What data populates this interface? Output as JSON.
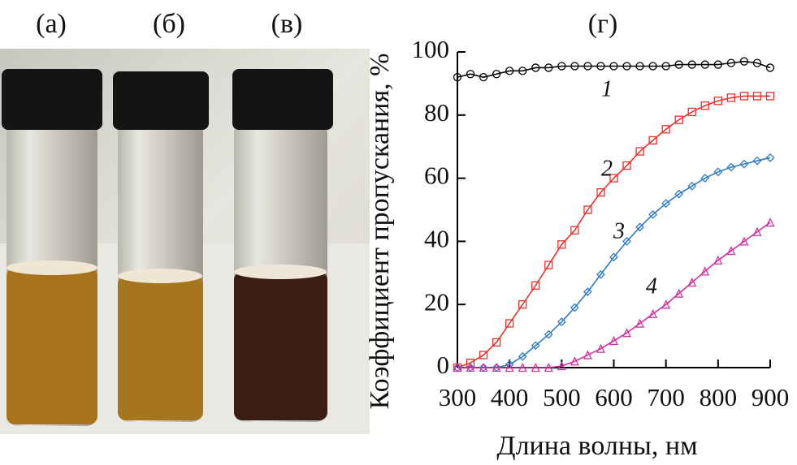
{
  "panels": [
    "(а)",
    "(б)",
    "(в)"
  ],
  "chart_data": {
    "type": "line",
    "title": "(г)",
    "x_label": "Длина волны, нм",
    "y_label": "Коэффициент пропускания, %",
    "x": [
      300,
      325,
      350,
      375,
      400,
      425,
      450,
      475,
      500,
      525,
      550,
      575,
      600,
      625,
      650,
      675,
      700,
      725,
      750,
      775,
      800,
      825,
      850,
      875,
      900
    ],
    "xlim": [
      300,
      900
    ],
    "xticks": [
      300,
      400,
      500,
      600,
      700,
      800,
      900
    ],
    "ylim": [
      0,
      100
    ],
    "yticks": [
      0,
      20,
      40,
      60,
      80,
      100
    ],
    "series": [
      {
        "name": "1",
        "color": "#000000",
        "marker": "circle",
        "values": [
          92,
          93,
          92,
          93,
          94,
          94,
          95,
          95,
          95.5,
          95.5,
          95.5,
          95.5,
          95.5,
          95.5,
          95.5,
          95.5,
          95.5,
          96,
          96,
          96,
          96,
          96.5,
          97,
          96.5,
          95
        ]
      },
      {
        "name": "2",
        "color": "#e8322d",
        "marker": "square",
        "values": [
          0,
          1.5,
          4,
          8,
          14,
          20,
          26,
          32.5,
          39,
          43.5,
          50,
          55.5,
          60,
          64,
          68.5,
          72,
          75.5,
          78.5,
          81,
          83,
          84.5,
          85.5,
          86,
          86,
          86
        ]
      },
      {
        "name": "3",
        "color": "#2e7bc4",
        "marker": "diamond",
        "values": [
          0,
          0,
          0,
          0,
          1,
          3.5,
          7,
          10.5,
          14.5,
          19,
          24,
          29.5,
          35,
          40,
          44.5,
          48.5,
          52,
          55,
          57.5,
          60,
          62,
          63.5,
          64.5,
          65.5,
          66.5
        ]
      },
      {
        "name": "4",
        "color": "#d0329e",
        "marker": "triangle",
        "values": [
          0,
          0,
          0,
          0,
          0,
          0,
          0,
          0,
          0.5,
          2,
          4,
          6,
          8.5,
          11,
          14,
          17,
          20,
          23.5,
          27,
          30.5,
          34,
          37,
          40,
          43,
          46
        ]
      }
    ]
  }
}
